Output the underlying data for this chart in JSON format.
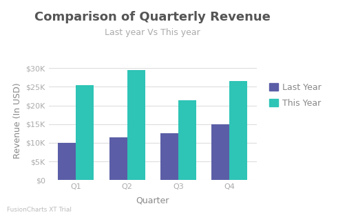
{
  "title": "Comparison of Quarterly Revenue",
  "subtitle": "Last year Vs This year",
  "xlabel": "Quarter",
  "ylabel": "Revenue (In USD)",
  "categories": [
    "Q1",
    "Q2",
    "Q3",
    "Q4"
  ],
  "last_year": [
    10000,
    11500,
    12500,
    15000
  ],
  "this_year": [
    25500,
    29500,
    21500,
    26500
  ],
  "last_year_color": "#5b5ea6",
  "this_year_color": "#2ec4b6",
  "background_color": "#ffffff",
  "plot_bg_color": "#ffffff",
  "grid_color": "#dddddd",
  "title_fontsize": 13,
  "subtitle_fontsize": 9,
  "label_fontsize": 9,
  "tick_fontsize": 8,
  "legend_labels": [
    "Last Year",
    "This Year"
  ],
  "yticks": [
    0,
    5000,
    10000,
    15000,
    20000,
    25000,
    30000
  ],
  "ytick_labels": [
    "$0",
    "$5K",
    "$10K",
    "$15K",
    "$20K",
    "$25K",
    "$30K"
  ],
  "ylim": [
    0,
    32000
  ],
  "watermark": "FusionCharts XT Trial",
  "bar_width": 0.35,
  "title_color": "#555555",
  "subtitle_color": "#aaaaaa",
  "axis_label_color": "#888888",
  "tick_color": "#aaaaaa",
  "legend_fontsize": 9
}
